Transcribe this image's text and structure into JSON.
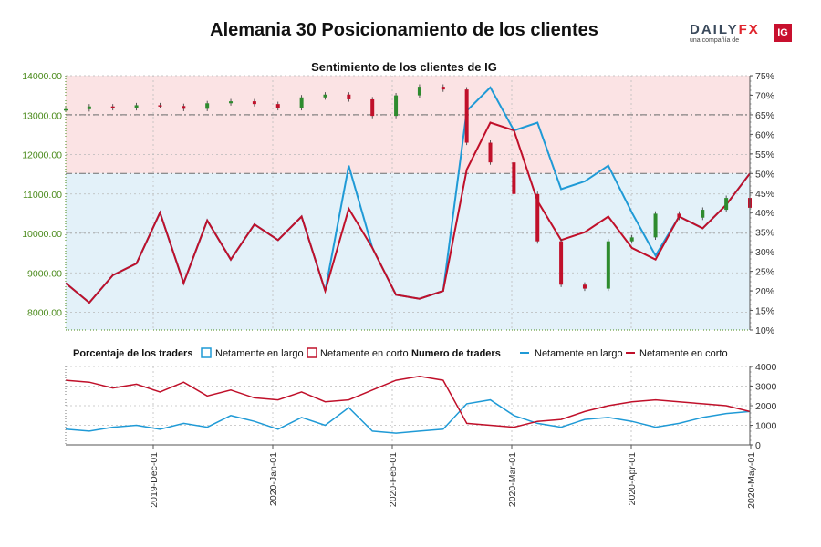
{
  "title": "Alemania 30 Posicionamiento de los clientes",
  "brand": {
    "name_part1": "DAILY",
    "name_part2": "FX",
    "tagline": "una compañía de",
    "badge": "IG",
    "red": "#e0242d",
    "navy": "#3b4a5c"
  },
  "colors": {
    "price_axis": "#4a8a1a",
    "candle_up": "#2e8b2e",
    "candle_down": "#c0102a",
    "long": "#1f9ad6",
    "short": "#c0102a",
    "fill_short": "#fbe3e4",
    "fill_long": "#e3f1f9"
  },
  "chart_data": [
    {
      "type": "line",
      "title": "Sentimiento de los clientes de IG",
      "yleft_ticks": [
        "8000.00",
        "9000.00",
        "10000.00",
        "11000.00",
        "12000.00",
        "13000.00",
        "14000.00"
      ],
      "yleft_range": [
        7550,
        14000
      ],
      "yright_ticks": [
        "10%",
        "15%",
        "20%",
        "25%",
        "30%",
        "35%",
        "40%",
        "45%",
        "50%",
        "55%",
        "60%",
        "65%",
        "70%",
        "75%"
      ],
      "yright_range": [
        10,
        75
      ],
      "reference_lines_pct": [
        65,
        50,
        35
      ],
      "x": [
        "2019-11-01",
        "2019-11-08",
        "2019-11-15",
        "2019-11-22",
        "2019-11-29",
        "2019-12-06",
        "2019-12-13",
        "2019-12-20",
        "2019-12-27",
        "2020-01-03",
        "2020-01-10",
        "2020-01-17",
        "2020-01-24",
        "2020-01-31",
        "2020-02-07",
        "2020-02-14",
        "2020-02-21",
        "2020-02-28",
        "2020-03-04",
        "2020-03-09",
        "2020-03-13",
        "2020-03-18",
        "2020-03-23",
        "2020-03-27",
        "2020-04-01",
        "2020-04-08",
        "2020-04-15",
        "2020-04-22",
        "2020-04-29",
        "2020-05-06"
      ],
      "price": [
        13150,
        13220,
        13180,
        13250,
        13230,
        13160,
        13300,
        13350,
        13280,
        13180,
        13450,
        13520,
        13400,
        12980,
        13500,
        13720,
        13650,
        12300,
        11800,
        11000,
        9800,
        8700,
        8600,
        9800,
        9900,
        10500,
        10400,
        10600,
        10900,
        10650
      ],
      "series": [
        {
          "name": "Netamente en corto",
          "values": [
            22,
            17,
            24,
            27,
            40,
            22,
            38,
            28,
            37,
            33,
            39,
            20,
            41,
            31,
            19,
            18,
            20,
            51,
            63,
            61,
            43,
            33,
            35,
            39,
            31,
            28,
            39,
            36,
            42,
            50
          ]
        },
        {
          "name": "Netamente en largo",
          "values": [
            22,
            17,
            24,
            27,
            40,
            22,
            38,
            28,
            37,
            33,
            39,
            20,
            52,
            31,
            19,
            18,
            20,
            66,
            72,
            61,
            63,
            46,
            48,
            52,
            40,
            29,
            39,
            36,
            42,
            50
          ]
        }
      ]
    },
    {
      "type": "line",
      "title": "Numero de traders",
      "x_ticks": [
        "2019-Dec-01",
        "2020-Jan-01",
        "2020-Feb-01",
        "2020-Mar-01",
        "2020-Apr-01",
        "2020-May-01"
      ],
      "yright_ticks": [
        "0",
        "1000",
        "2000",
        "3000",
        "4000"
      ],
      "yright_range": [
        0,
        4000
      ],
      "series": [
        {
          "name": "Netamente en largo",
          "values": [
            800,
            700,
            900,
            1000,
            800,
            1100,
            900,
            1500,
            1200,
            800,
            1400,
            1000,
            1900,
            700,
            600,
            700,
            800,
            2100,
            2300,
            1500,
            1100,
            900,
            1300,
            1400,
            1200,
            900,
            1100,
            1400,
            1600,
            1700
          ]
        },
        {
          "name": "Netamente en corto",
          "values": [
            3300,
            3200,
            2900,
            3100,
            2700,
            3200,
            2500,
            2800,
            2400,
            2300,
            2700,
            2200,
            2300,
            2800,
            3300,
            3500,
            3300,
            1100,
            1000,
            900,
            1200,
            1300,
            1700,
            2000,
            2200,
            2300,
            2200,
            2100,
            2000,
            1700
          ]
        }
      ]
    }
  ],
  "legend": {
    "pct_title": "Porcentaje de los traders",
    "pct_long": "Netamente en largo",
    "pct_short": "Netamente en corto",
    "num_title": "Numero de traders",
    "num_long": "Netamente en largo",
    "num_short": "Netamente en corto"
  }
}
